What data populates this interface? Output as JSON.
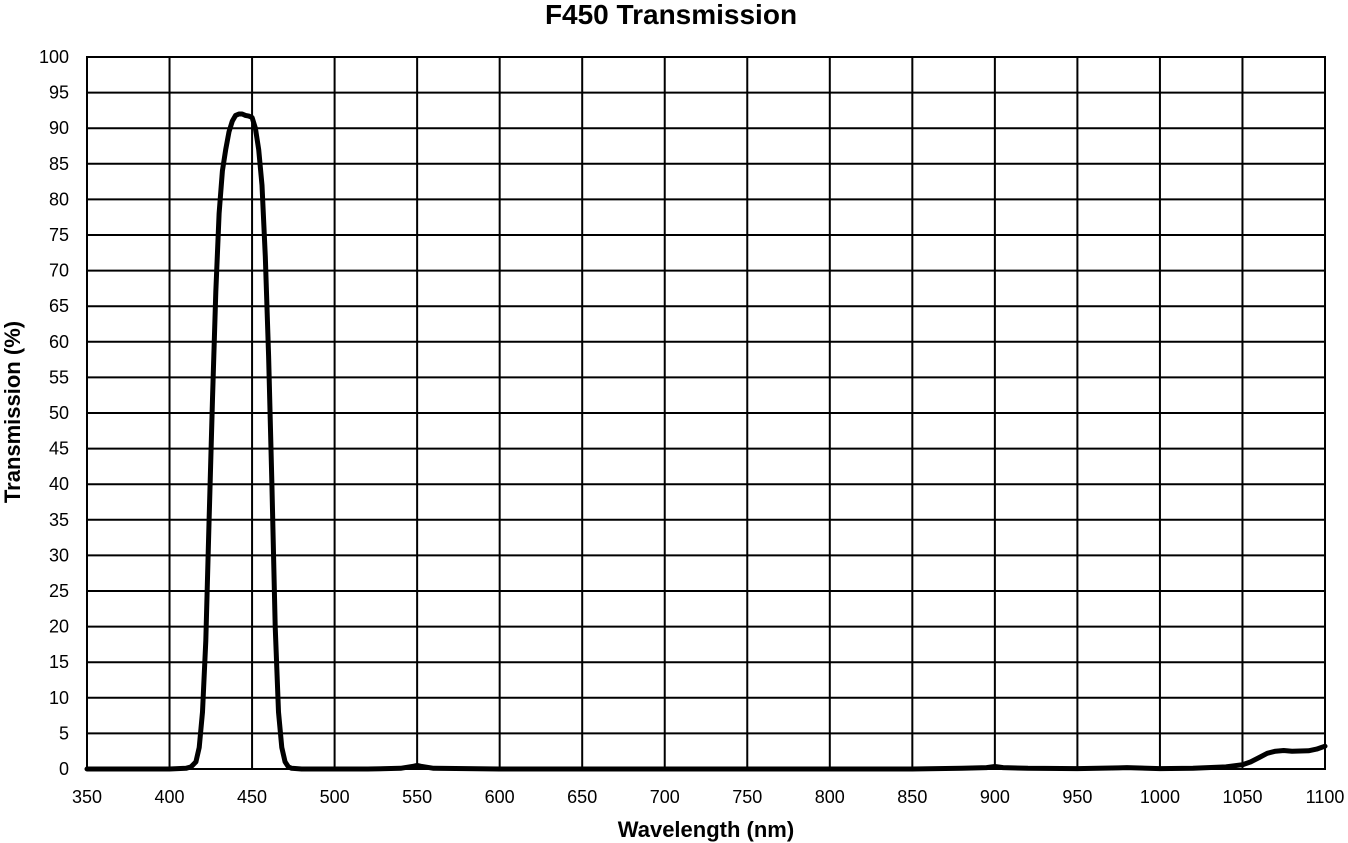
{
  "chart_data": {
    "type": "line",
    "title": "F450 Transmission",
    "xlabel": "Wavelength (nm)",
    "ylabel": "Transmission (%)",
    "xlim": [
      350,
      1100
    ],
    "ylim": [
      0,
      100
    ],
    "grid": true,
    "x_ticks": [
      "350",
      "400",
      "450",
      "500",
      "550",
      "600",
      "650",
      "700",
      "750",
      "800",
      "850",
      "900",
      "950",
      "1000",
      "1050",
      "1100"
    ],
    "y_ticks": [
      "0",
      "5",
      "10",
      "15",
      "20",
      "25",
      "30",
      "35",
      "40",
      "45",
      "50",
      "55",
      "60",
      "65",
      "70",
      "75",
      "80",
      "85",
      "90",
      "95",
      "100"
    ],
    "line_color": "#000000",
    "series": [
      {
        "x": [
          350,
          380,
          400,
          410,
          413,
          416,
          418,
          420,
          422,
          424,
          426,
          428,
          430,
          432,
          434,
          436,
          438,
          440,
          442,
          444,
          446,
          448,
          450,
          452,
          454,
          456,
          458,
          460,
          462,
          464,
          466,
          468,
          470,
          472,
          474,
          480,
          500,
          520,
          540,
          548,
          550,
          552,
          560,
          600,
          650,
          700,
          750,
          800,
          850,
          880,
          895,
          900,
          905,
          920,
          950,
          975,
          980,
          985,
          1000,
          1020,
          1040,
          1050,
          1055,
          1060,
          1065,
          1070,
          1075,
          1080,
          1090,
          1095,
          1100
        ],
        "y": [
          0,
          0,
          0,
          0.1,
          0.3,
          1,
          3,
          8,
          18,
          35,
          52,
          67,
          78,
          84,
          87,
          89.5,
          91,
          91.8,
          92,
          92,
          91.8,
          91.7,
          91.5,
          90,
          87,
          82,
          72,
          58,
          40,
          20,
          8,
          3,
          1,
          0.3,
          0.1,
          0,
          0,
          0,
          0.1,
          0.4,
          0.5,
          0.4,
          0.1,
          0,
          0,
          0,
          0,
          0,
          0,
          0.1,
          0.2,
          0.35,
          0.2,
          0.1,
          0.05,
          0.15,
          0.2,
          0.15,
          0.05,
          0.1,
          0.3,
          0.6,
          1.0,
          1.6,
          2.2,
          2.5,
          2.6,
          2.5,
          2.55,
          2.8,
          3.2
        ]
      }
    ]
  }
}
